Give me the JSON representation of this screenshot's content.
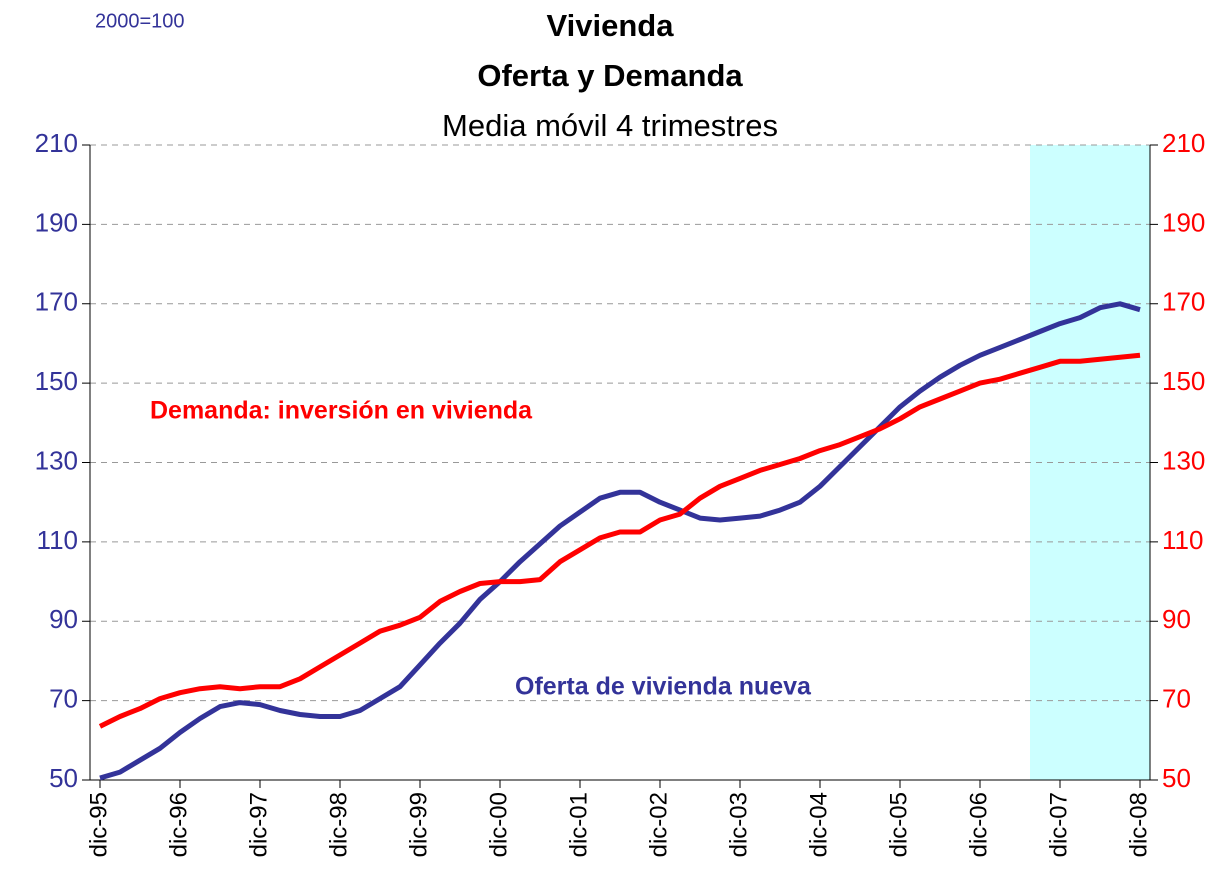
{
  "chart_data": {
    "type": "line",
    "title": "Vivienda",
    "subtitle": "Oferta y Demanda",
    "subtitle2": "Media móvil 4 trimestres",
    "unit_note": "2000=100",
    "annotations": [
      {
        "text": "Demanda: inversión en vivienda",
        "color": "#ff0000"
      },
      {
        "text": "Oferta de vivienda nueva",
        "color": "#333399"
      }
    ],
    "categories": [
      "dic-95",
      null,
      null,
      null,
      "dic-96",
      null,
      null,
      null,
      "dic-97",
      null,
      null,
      null,
      "dic-98",
      null,
      null,
      null,
      "dic-99",
      null,
      null,
      null,
      "dic-00",
      null,
      null,
      null,
      "dic-01",
      null,
      null,
      null,
      "dic-02",
      null,
      null,
      null,
      "dic-03",
      null,
      null,
      null,
      "dic-04",
      null,
      null,
      null,
      "dic-05",
      null,
      null,
      null,
      "dic-06",
      null,
      null,
      null,
      "dic-07",
      null,
      null,
      null,
      "dic-08"
    ],
    "series": [
      {
        "name": "Oferta de vivienda nueva",
        "color": "#333399",
        "values": [
          50.5,
          52,
          55,
          58,
          62,
          65.5,
          68.5,
          69.5,
          69,
          67.5,
          66.5,
          66,
          66,
          67.5,
          70.5,
          73.5,
          79,
          84.5,
          89.5,
          95.5,
          100,
          105,
          109.5,
          114,
          117.5,
          121,
          122.5,
          122.5,
          120,
          118,
          116,
          115.5,
          116,
          116.5,
          118,
          120,
          124,
          129,
          134,
          139,
          144,
          148,
          151.5,
          154.5,
          157,
          159,
          161,
          163,
          165,
          166.5,
          169,
          170,
          168.5
        ]
      },
      {
        "name": "Demanda: inversión en vivienda",
        "color": "#ff0000",
        "axis": "y2",
        "values": [
          63.5,
          66,
          68,
          70.5,
          72,
          73,
          73.5,
          73,
          73.5,
          73.5,
          75.5,
          78.5,
          81.5,
          84.5,
          87.5,
          89,
          91,
          95,
          97.5,
          99.5,
          100,
          100,
          100.5,
          105,
          108,
          111,
          112.5,
          112.5,
          115.5,
          117,
          121,
          124,
          126,
          128,
          129.5,
          131,
          133,
          134.5,
          136.5,
          138.5,
          141,
          144,
          146,
          148,
          150,
          151,
          152.5,
          154,
          155.5,
          155.5,
          156,
          156.5,
          157
        ]
      }
    ],
    "ylim": [
      50,
      210
    ],
    "yticks": [
      50,
      70,
      90,
      110,
      130,
      150,
      170,
      190,
      210
    ],
    "y2lim": [
      50,
      210
    ],
    "y2ticks": [
      50,
      70,
      90,
      110,
      130,
      150,
      170,
      190,
      210
    ],
    "grid": true,
    "highlight": {
      "start": 47,
      "end": 52,
      "color": "#ccffff"
    }
  }
}
